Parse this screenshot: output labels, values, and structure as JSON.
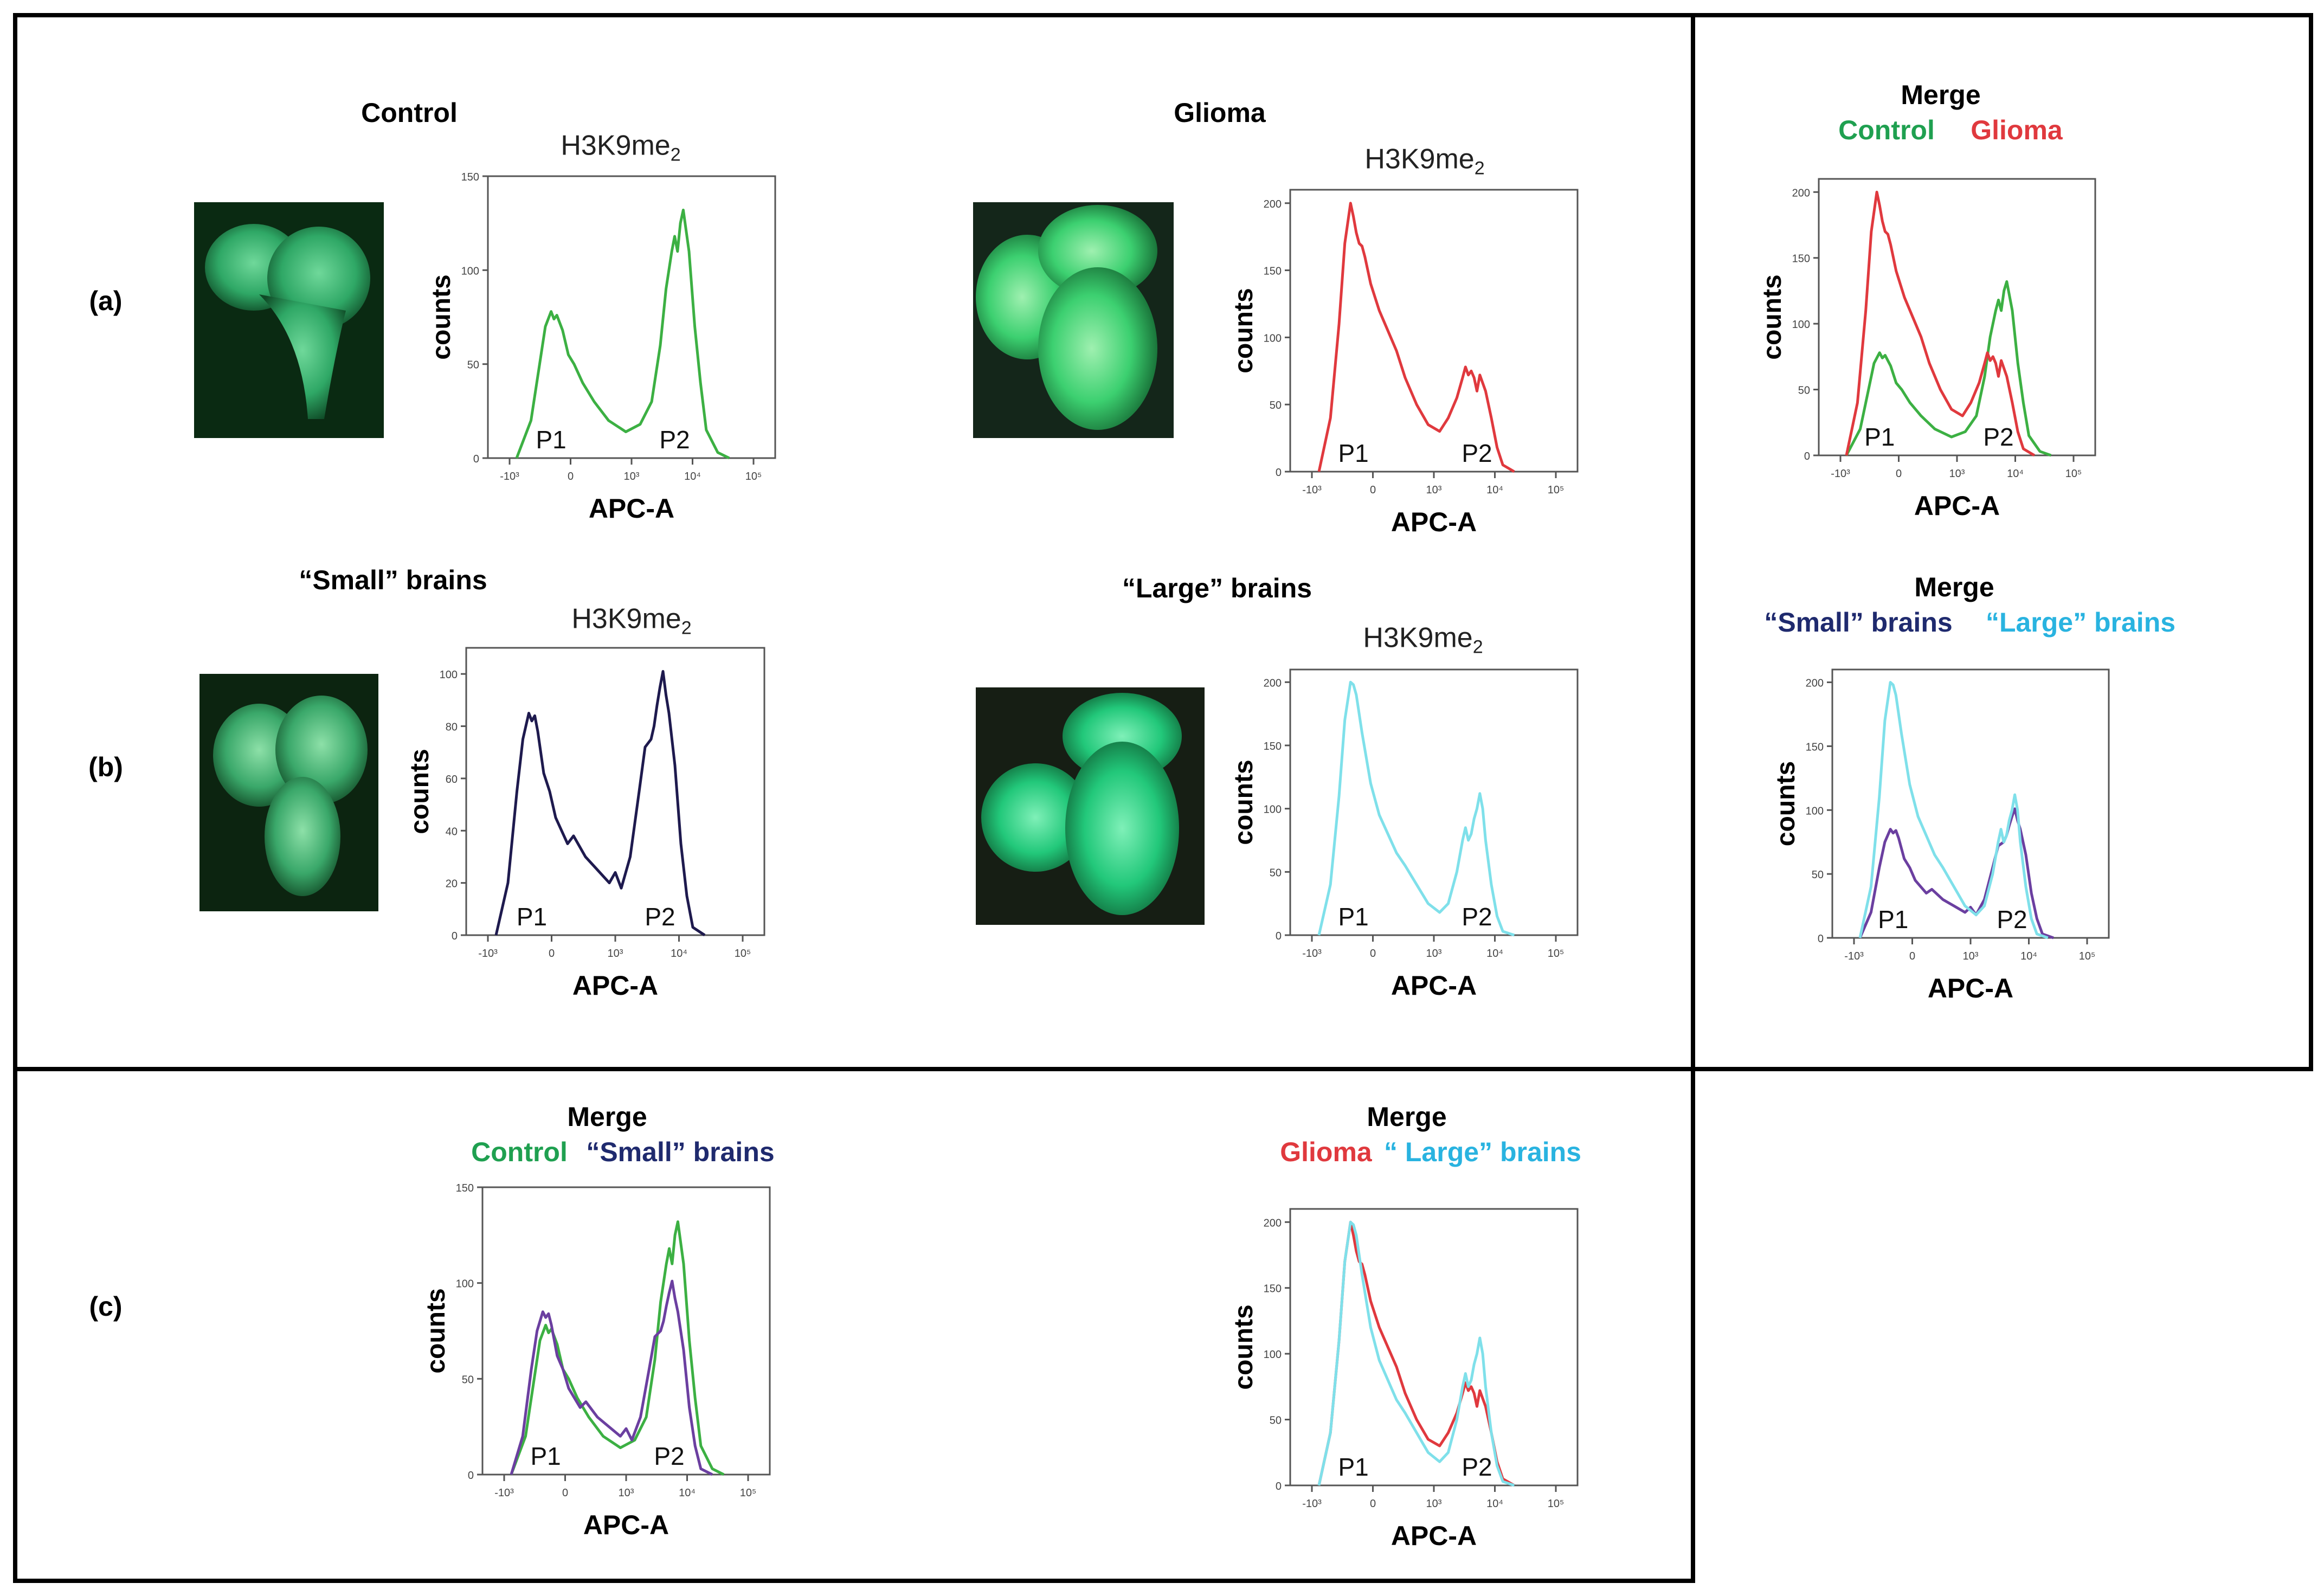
{
  "row_labels": {
    "a": "(a)",
    "b": "(b)",
    "c": "(c)"
  },
  "condition_labels": {
    "control": "Control",
    "glioma": "Glioma",
    "small": "“Small” brains",
    "large": "“Large” brains"
  },
  "merge_panels": {
    "a": {
      "title": "Merge",
      "legend1": "Control",
      "legend2": "Glioma"
    },
    "b": {
      "title": "Merge",
      "legend1": "“Small” brains",
      "legend2": "“Large” brains"
    },
    "c1": {
      "title": "Merge",
      "legend1": "Control",
      "legend2": "“Small” brains"
    },
    "c2": {
      "title": "Merge",
      "legend1": "Glioma",
      "legend2": "“ Large” brains"
    }
  },
  "panel_title": {
    "text": "H3K9me",
    "sub": "2"
  },
  "colors": {
    "control": "#3cb043",
    "glioma": "#e0393e",
    "small": "#1e1a4e",
    "small_merge": "#6b3fa0",
    "large": "#7fe0ea",
    "legend_control": "#1fa050",
    "legend_glioma": "#e0393e",
    "legend_small": "#1f2a6e",
    "legend_large": "#29b3e0"
  },
  "chart_data": [
    {
      "id": "a-control",
      "type": "line",
      "xlabel": "APC-A",
      "ylabel": "counts",
      "x_range": [
        0,
        100
      ],
      "ylim": [
        0,
        150
      ],
      "yticks": [
        "0",
        "50",
        "100",
        "150"
      ],
      "xticks": [
        "-10³",
        "0",
        "10³",
        "10⁴",
        "10⁵"
      ],
      "peaks": [
        "P1",
        "P2"
      ],
      "series": [
        {
          "name": "Control",
          "color_key": "control",
          "x": [
            10,
            15,
            18,
            20,
            22,
            23,
            24,
            26,
            28,
            30,
            33,
            37,
            42,
            48,
            53,
            57,
            60,
            62,
            64,
            65,
            66,
            67,
            68,
            70,
            72,
            74,
            76,
            80,
            84
          ],
          "y": [
            0,
            20,
            50,
            70,
            78,
            74,
            76,
            68,
            55,
            50,
            40,
            30,
            20,
            14,
            18,
            30,
            60,
            90,
            110,
            118,
            110,
            125,
            132,
            110,
            70,
            40,
            15,
            3,
            0
          ]
        }
      ]
    },
    {
      "id": "a-glioma",
      "type": "line",
      "xlabel": "APC-A",
      "ylabel": "counts",
      "x_range": [
        0,
        100
      ],
      "ylim": [
        0,
        210
      ],
      "yticks": [
        "0",
        "50",
        "100",
        "150",
        "200"
      ],
      "xticks": [
        "-10³",
        "0",
        "10³",
        "10⁴",
        "10⁵"
      ],
      "peaks": [
        "P1",
        "P2"
      ],
      "series": [
        {
          "name": "Glioma",
          "color_key": "glioma",
          "x": [
            10,
            14,
            17,
            19,
            21,
            22,
            23,
            24,
            25,
            26,
            28,
            31,
            34,
            37,
            40,
            44,
            48,
            52,
            55,
            58,
            60,
            61,
            62,
            63,
            64,
            65,
            66,
            68,
            70,
            72,
            74,
            78
          ],
          "y": [
            0,
            40,
            110,
            170,
            200,
            190,
            178,
            170,
            168,
            160,
            140,
            120,
            105,
            90,
            70,
            50,
            35,
            30,
            40,
            55,
            70,
            78,
            72,
            75,
            70,
            60,
            72,
            60,
            40,
            18,
            5,
            0
          ]
        }
      ]
    },
    {
      "id": "a-merge",
      "type": "line",
      "xlabel": "APC-A",
      "ylabel": "counts",
      "x_range": [
        0,
        100
      ],
      "ylim": [
        0,
        210
      ],
      "yticks": [
        "0",
        "50",
        "100",
        "150",
        "200"
      ],
      "xticks": [
        "-10³",
        "0",
        "10³",
        "10⁴",
        "10⁵"
      ],
      "peaks": [
        "P1",
        "P2"
      ],
      "series": [
        {
          "name": "Control",
          "color_key": "control",
          "x": [
            10,
            15,
            18,
            20,
            22,
            23,
            24,
            26,
            28,
            30,
            33,
            37,
            42,
            48,
            53,
            57,
            60,
            62,
            64,
            65,
            66,
            67,
            68,
            70,
            72,
            74,
            76,
            80,
            84
          ],
          "y": [
            0,
            20,
            50,
            70,
            78,
            74,
            76,
            68,
            55,
            50,
            40,
            30,
            20,
            14,
            18,
            30,
            60,
            90,
            110,
            118,
            110,
            125,
            132,
            110,
            70,
            40,
            15,
            3,
            0
          ]
        },
        {
          "name": "Glioma",
          "color_key": "glioma",
          "x": [
            10,
            14,
            17,
            19,
            21,
            22,
            23,
            24,
            25,
            26,
            28,
            31,
            34,
            37,
            40,
            44,
            48,
            52,
            55,
            58,
            60,
            61,
            62,
            63,
            64,
            65,
            66,
            68,
            70,
            72,
            74,
            78
          ],
          "y": [
            0,
            40,
            110,
            170,
            200,
            190,
            178,
            170,
            168,
            160,
            140,
            120,
            105,
            90,
            70,
            50,
            35,
            30,
            40,
            55,
            70,
            78,
            72,
            75,
            70,
            60,
            72,
            60,
            40,
            18,
            5,
            0
          ]
        }
      ]
    },
    {
      "id": "b-small",
      "type": "line",
      "xlabel": "APC-A",
      "ylabel": "counts",
      "x_range": [
        0,
        100
      ],
      "ylim": [
        0,
        110
      ],
      "yticks": [
        "0",
        "20",
        "40",
        "60",
        "80",
        "100"
      ],
      "xticks": [
        "-10³",
        "0",
        "10³",
        "10⁴",
        "10⁵"
      ],
      "peaks": [
        "P1",
        "P2"
      ],
      "series": [
        {
          "name": "Small brains",
          "color_key": "small",
          "x": [
            10,
            14,
            17,
            19,
            21,
            22,
            23,
            24,
            26,
            28,
            30,
            32,
            34,
            36,
            40,
            44,
            48,
            50,
            52,
            55,
            58,
            60,
            62,
            63,
            64,
            65,
            66,
            67,
            68,
            70,
            72,
            74,
            76,
            80
          ],
          "y": [
            0,
            20,
            55,
            75,
            85,
            82,
            84,
            78,
            62,
            55,
            45,
            40,
            35,
            38,
            30,
            25,
            20,
            24,
            18,
            30,
            55,
            72,
            75,
            80,
            88,
            95,
            101,
            92,
            85,
            65,
            35,
            15,
            3,
            0
          ]
        }
      ]
    },
    {
      "id": "b-large",
      "type": "line",
      "xlabel": "APC-A",
      "ylabel": "counts",
      "x_range": [
        0,
        100
      ],
      "ylim": [
        0,
        210
      ],
      "yticks": [
        "0",
        "50",
        "100",
        "150",
        "200"
      ],
      "xticks": [
        "-10³",
        "0",
        "10³",
        "10⁴",
        "10⁵"
      ],
      "peaks": [
        "P1",
        "P2"
      ],
      "series": [
        {
          "name": "Large brains",
          "color_key": "large",
          "x": [
            10,
            14,
            17,
            19,
            21,
            22,
            23,
            25,
            28,
            31,
            34,
            37,
            40,
            44,
            48,
            52,
            55,
            58,
            60,
            61,
            62,
            63,
            64,
            65,
            66,
            67,
            68,
            70,
            72,
            74,
            78
          ],
          "y": [
            0,
            40,
            110,
            170,
            200,
            198,
            190,
            160,
            120,
            95,
            80,
            65,
            55,
            40,
            25,
            18,
            25,
            50,
            75,
            85,
            75,
            80,
            92,
            100,
            112,
            100,
            75,
            40,
            15,
            3,
            0
          ]
        }
      ]
    },
    {
      "id": "b-merge",
      "type": "line",
      "xlabel": "APC-A",
      "ylabel": "counts",
      "x_range": [
        0,
        100
      ],
      "ylim": [
        0,
        210
      ],
      "yticks": [
        "0",
        "50",
        "100",
        "150",
        "200"
      ],
      "xticks": [
        "-10³",
        "0",
        "10³",
        "10⁴",
        "10⁵"
      ],
      "peaks": [
        "P1",
        "P2"
      ],
      "series": [
        {
          "name": "Small brains",
          "color_key": "small_merge",
          "x": [
            10,
            14,
            17,
            19,
            21,
            22,
            23,
            24,
            26,
            28,
            30,
            32,
            34,
            36,
            40,
            44,
            48,
            50,
            52,
            55,
            58,
            60,
            62,
            63,
            64,
            65,
            66,
            67,
            68,
            70,
            72,
            74,
            76,
            80
          ],
          "y": [
            0,
            20,
            55,
            75,
            85,
            82,
            84,
            78,
            62,
            55,
            45,
            40,
            35,
            38,
            30,
            25,
            20,
            24,
            18,
            30,
            55,
            72,
            75,
            80,
            88,
            95,
            101,
            92,
            85,
            65,
            35,
            15,
            3,
            0
          ]
        },
        {
          "name": "Large brains",
          "color_key": "large",
          "x": [
            10,
            14,
            17,
            19,
            21,
            22,
            23,
            25,
            28,
            31,
            34,
            37,
            40,
            44,
            48,
            52,
            55,
            58,
            60,
            61,
            62,
            63,
            64,
            65,
            66,
            67,
            68,
            70,
            72,
            74,
            78
          ],
          "y": [
            0,
            40,
            110,
            170,
            200,
            198,
            190,
            160,
            120,
            95,
            80,
            65,
            55,
            40,
            25,
            18,
            25,
            50,
            75,
            85,
            75,
            80,
            92,
            100,
            112,
            100,
            75,
            40,
            15,
            3,
            0
          ]
        }
      ]
    },
    {
      "id": "c-merge1",
      "type": "line",
      "xlabel": "APC-A",
      "ylabel": "counts",
      "x_range": [
        0,
        100
      ],
      "ylim": [
        0,
        150
      ],
      "yticks": [
        "0",
        "50",
        "100",
        "150"
      ],
      "xticks": [
        "-10³",
        "0",
        "10³",
        "10⁴",
        "10⁵"
      ],
      "peaks": [
        "P1",
        "P2"
      ],
      "series": [
        {
          "name": "Control",
          "color_key": "control",
          "x": [
            10,
            15,
            18,
            20,
            22,
            23,
            24,
            26,
            28,
            30,
            33,
            37,
            42,
            48,
            53,
            57,
            60,
            62,
            64,
            65,
            66,
            67,
            68,
            70,
            72,
            74,
            76,
            80,
            84
          ],
          "y": [
            0,
            20,
            50,
            70,
            78,
            74,
            76,
            68,
            55,
            50,
            40,
            30,
            20,
            14,
            18,
            30,
            60,
            90,
            110,
            118,
            110,
            125,
            132,
            110,
            70,
            40,
            15,
            3,
            0
          ]
        },
        {
          "name": "Small brains",
          "color_key": "small_merge",
          "x": [
            10,
            14,
            17,
            19,
            21,
            22,
            23,
            24,
            26,
            28,
            30,
            32,
            34,
            36,
            40,
            44,
            48,
            50,
            52,
            55,
            58,
            60,
            62,
            63,
            64,
            65,
            66,
            67,
            68,
            70,
            72,
            74,
            76,
            80
          ],
          "y": [
            0,
            20,
            55,
            75,
            85,
            82,
            84,
            78,
            62,
            55,
            45,
            40,
            35,
            38,
            30,
            25,
            20,
            24,
            18,
            30,
            55,
            72,
            75,
            80,
            88,
            95,
            101,
            92,
            85,
            65,
            35,
            15,
            3,
            0
          ]
        }
      ]
    },
    {
      "id": "c-merge2",
      "type": "line",
      "xlabel": "APC-A",
      "ylabel": "counts",
      "x_range": [
        0,
        100
      ],
      "ylim": [
        0,
        210
      ],
      "yticks": [
        "0",
        "50",
        "100",
        "150",
        "200"
      ],
      "xticks": [
        "-10³",
        "0",
        "10³",
        "10⁴",
        "10⁵"
      ],
      "peaks": [
        "P1",
        "P2"
      ],
      "series": [
        {
          "name": "Glioma",
          "color_key": "glioma",
          "x": [
            10,
            14,
            17,
            19,
            21,
            22,
            23,
            24,
            25,
            26,
            28,
            31,
            34,
            37,
            40,
            44,
            48,
            52,
            55,
            58,
            60,
            61,
            62,
            63,
            64,
            65,
            66,
            68,
            70,
            72,
            74,
            78
          ],
          "y": [
            0,
            40,
            110,
            170,
            200,
            190,
            178,
            170,
            168,
            160,
            140,
            120,
            105,
            90,
            70,
            50,
            35,
            30,
            40,
            55,
            70,
            78,
            72,
            75,
            70,
            60,
            72,
            60,
            40,
            18,
            5,
            0
          ]
        },
        {
          "name": "Large brains",
          "color_key": "large",
          "x": [
            10,
            14,
            17,
            19,
            21,
            22,
            23,
            25,
            28,
            31,
            34,
            37,
            40,
            44,
            48,
            52,
            55,
            58,
            60,
            61,
            62,
            63,
            64,
            65,
            66,
            67,
            68,
            70,
            72,
            74,
            78
          ],
          "y": [
            0,
            40,
            110,
            170,
            200,
            198,
            190,
            160,
            120,
            95,
            80,
            65,
            55,
            40,
            25,
            18,
            25,
            50,
            75,
            85,
            75,
            80,
            92,
            100,
            112,
            100,
            75,
            40,
            15,
            3,
            0
          ]
        }
      ]
    }
  ]
}
